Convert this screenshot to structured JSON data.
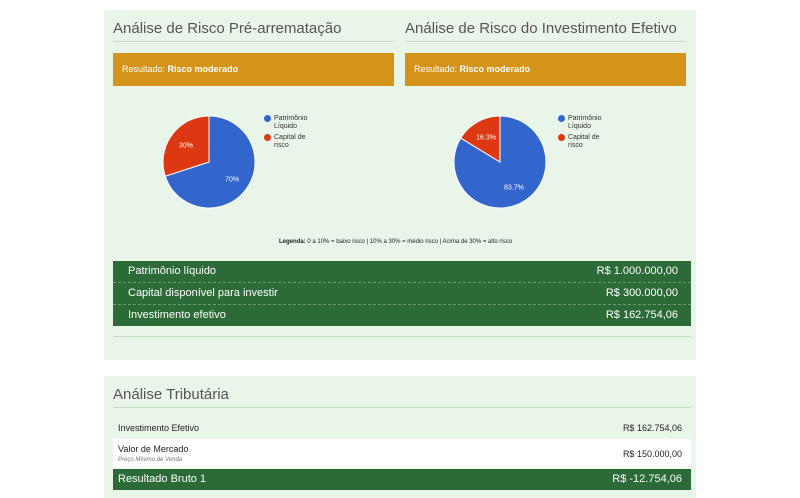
{
  "risk_pre": {
    "title": "Análise de Risco Pré-arrematação",
    "result_label": "Resultado:",
    "result_value": "Risco moderado",
    "chart_data": {
      "type": "pie",
      "slices": [
        {
          "name": "Patrimônio Líquido",
          "value": 70,
          "label": "70%",
          "color": "#3366cc"
        },
        {
          "name": "Capital de risco",
          "value": 30,
          "label": "30%",
          "color": "#dc3912"
        }
      ]
    }
  },
  "risk_effective": {
    "title": "Análise de Risco do Investimento Efetivo",
    "result_label": "Resultado:",
    "result_value": "Risco moderado",
    "chart_data": {
      "type": "pie",
      "slices": [
        {
          "name": "Patrimônio Líquido",
          "value": 83.7,
          "label": "83.7%",
          "color": "#3366cc"
        },
        {
          "name": "Capital de risco",
          "value": 16.3,
          "label": "16.3%",
          "color": "#dc3912"
        }
      ]
    }
  },
  "legend_lines": {
    "patrimonio_line1": "Patrimônio",
    "patrimonio_line2": "Líquido",
    "capital_line1": "Capital de",
    "capital_line2": "risco"
  },
  "legend_note": {
    "prefix": "Legenda:",
    "text": "0 a 10% = baixo risco | 10% a 30% = médio risco | Acima de 30% = alto risco"
  },
  "summary": [
    {
      "label": "Patrimônio líquido",
      "value": "R$ 1.000.000,00"
    },
    {
      "label": "Capital disponível para investir",
      "value": "R$ 300.000,00"
    },
    {
      "label": "Investimento efetivo",
      "value": "R$ 162.754,06"
    }
  ],
  "tax": {
    "title": "Análise Tributária",
    "rows": [
      {
        "label": "Investimento Efetivo",
        "value": "R$ 162.754,06"
      },
      {
        "label": "Valor de Mercado",
        "sub": "Preço Mínimo de Venda",
        "value": "R$ 150.000,00"
      },
      {
        "label": "Resultado Bruto 1",
        "value": "R$ -12.754,06"
      }
    ]
  },
  "colors": {
    "panel_bg": "#eaf5ea",
    "banner": "#d4941a",
    "green_dark": "#2c6b37",
    "pie_blue": "#3366cc",
    "pie_red": "#dc3912"
  }
}
